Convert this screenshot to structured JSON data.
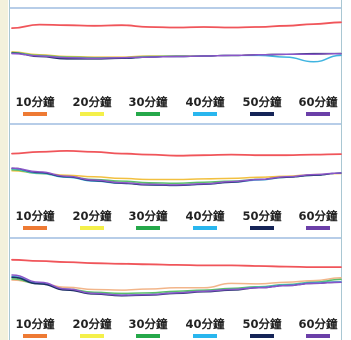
{
  "chart_data": [
    {
      "type": "line",
      "x": [
        0,
        1,
        2,
        3,
        4,
        5,
        6,
        7,
        8,
        9,
        10,
        11,
        12
      ],
      "ylim": [
        0,
        10
      ],
      "legend_position": "bottom",
      "legend": [
        "10分鐘",
        "20分鐘",
        "30分鐘",
        "40分鐘",
        "50分鐘",
        "60分鐘"
      ],
      "series": [
        {
          "color": "#f0555a",
          "values": [
            8.6,
            9.2,
            9.1,
            9.0,
            9.1,
            8.8,
            8.7,
            8.8,
            8.7,
            8.8,
            9.0,
            9.3,
            9.6
          ]
        },
        {
          "color": "#f2c040",
          "values": [
            4.5,
            4.0,
            3.7,
            3.6,
            3.6,
            3.8,
            3.8,
            3.8,
            3.9,
            4.0,
            4.1,
            4.1,
            4.2
          ]
        },
        {
          "color": "#5bbf6a",
          "values": [
            4.4,
            3.9,
            3.6,
            3.5,
            3.5,
            3.7,
            3.8,
            3.8,
            3.9,
            4.0,
            4.1,
            4.1,
            4.2
          ]
        },
        {
          "color": "#3fb4e0",
          "values": [
            4.3,
            3.8,
            3.5,
            3.4,
            3.4,
            3.6,
            3.7,
            3.8,
            3.9,
            3.9,
            3.6,
            2.8,
            3.9
          ]
        },
        {
          "color": "#1d2f66",
          "values": [
            4.3,
            3.7,
            3.3,
            3.3,
            3.4,
            3.6,
            3.7,
            3.8,
            3.9,
            4.0,
            4.1,
            4.2,
            4.2
          ]
        },
        {
          "color": "#8a55c8",
          "values": [
            4.2,
            3.8,
            3.5,
            3.4,
            3.5,
            3.6,
            3.7,
            3.8,
            3.9,
            4.0,
            4.1,
            4.1,
            4.2
          ]
        }
      ]
    },
    {
      "type": "line",
      "x": [
        0,
        1,
        2,
        3,
        4,
        5,
        6,
        7,
        8,
        9,
        10,
        11,
        12
      ],
      "ylim": [
        0,
        10
      ],
      "legend_position": "bottom",
      "legend": [
        "10分鐘",
        "20分鐘",
        "30分鐘",
        "40分鐘",
        "50分鐘",
        "60分鐘"
      ],
      "series": [
        {
          "color": "#f0555a",
          "values": [
            8.6,
            8.9,
            9.1,
            8.9,
            8.6,
            8.4,
            8.2,
            8.3,
            8.4,
            8.3,
            8.3,
            8.4,
            8.5
          ]
        },
        {
          "color": "#f2c040",
          "values": [
            5.4,
            5.0,
            4.6,
            4.3,
            4.0,
            3.8,
            3.8,
            3.9,
            4.0,
            4.2,
            4.4,
            4.7,
            4.9
          ]
        },
        {
          "color": "#5bbf6a",
          "values": [
            5.6,
            4.9,
            4.3,
            3.8,
            3.5,
            3.2,
            3.1,
            3.3,
            3.5,
            3.8,
            4.2,
            4.6,
            5.0
          ]
        },
        {
          "color": "#3fb4e0",
          "values": [
            5.8,
            5.0,
            4.2,
            3.5,
            3.1,
            2.8,
            2.7,
            2.9,
            3.3,
            3.7,
            4.2,
            4.6,
            5.0
          ]
        },
        {
          "color": "#1d2f66",
          "values": [
            5.9,
            5.1,
            4.3,
            3.6,
            3.1,
            2.8,
            2.7,
            2.9,
            3.3,
            3.8,
            4.2,
            4.6,
            5.0
          ]
        },
        {
          "color": "#8a55c8",
          "values": [
            5.9,
            5.2,
            4.4,
            3.7,
            3.2,
            2.9,
            2.8,
            3.0,
            3.4,
            3.8,
            4.3,
            4.7,
            5.0
          ]
        }
      ]
    },
    {
      "type": "line",
      "x": [
        0,
        1,
        2,
        3,
        4,
        5,
        6,
        7,
        8,
        9,
        10,
        11,
        12
      ],
      "ylim": [
        0,
        10
      ],
      "legend_position": "bottom",
      "legend": [
        "10分鐘",
        "20分鐘",
        "30分鐘",
        "40分鐘",
        "50分鐘",
        "60分鐘"
      ],
      "series": [
        {
          "color": "#f0555a",
          "values": [
            8.6,
            8.4,
            8.2,
            8.0,
            7.9,
            7.8,
            7.7,
            7.6,
            7.6,
            7.5,
            7.4,
            7.3,
            7.3
          ]
        },
        {
          "color": "#f2b58a",
          "values": [
            5.0,
            4.4,
            3.7,
            3.3,
            3.2,
            3.4,
            3.6,
            3.6,
            4.4,
            4.3,
            4.6,
            4.9,
            5.4
          ]
        },
        {
          "color": "#5bbf6a",
          "values": [
            5.2,
            4.3,
            3.4,
            2.8,
            2.6,
            2.7,
            3.0,
            3.2,
            3.5,
            3.8,
            4.2,
            4.6,
            5.1
          ]
        },
        {
          "color": "#3fb4e0",
          "values": [
            5.6,
            4.4,
            3.3,
            2.6,
            2.3,
            2.4,
            2.7,
            3.0,
            3.3,
            3.7,
            4.1,
            4.5,
            4.7
          ]
        },
        {
          "color": "#1d2f66",
          "values": [
            5.5,
            4.3,
            3.2,
            2.5,
            2.2,
            2.3,
            2.6,
            2.9,
            3.2,
            3.6,
            4.0,
            4.4,
            4.6
          ]
        },
        {
          "color": "#8a55c8",
          "values": [
            5.9,
            4.6,
            3.4,
            2.6,
            2.3,
            2.4,
            2.7,
            3.0,
            3.3,
            3.6,
            4.0,
            4.4,
            4.6
          ]
        }
      ]
    }
  ],
  "legend_swatch_colors": [
    "#ee7a34",
    "#f4f04a",
    "#25a84a",
    "#29b6ee",
    "#152457",
    "#6b3fa8"
  ]
}
